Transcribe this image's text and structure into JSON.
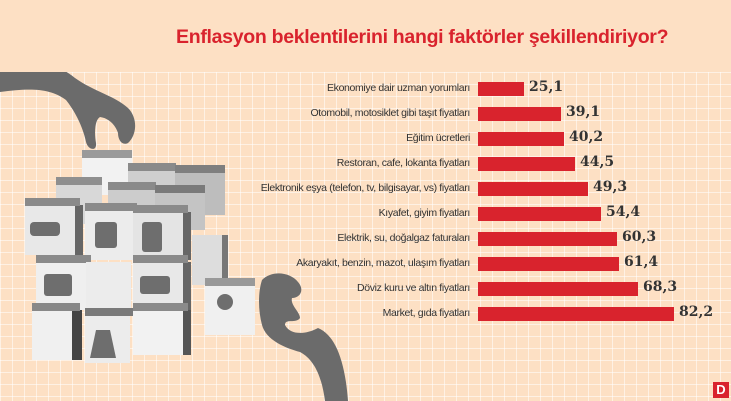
{
  "title": "Enflasyon beklentilerini hangi faktörler şekillendiriyor?",
  "brand_logo": "D",
  "colors": {
    "background": "#fde0c4",
    "bar": "#d9232d",
    "title": "#d9232d",
    "text": "#333333",
    "illustration": "#6e6e6e"
  },
  "illustration": {
    "description": "Two grey hands assembling a Rubik's-cube-like stack of grey cubes with icons",
    "cube_icons": [
      "car-price-tag-icon",
      "shopping-bag-icon",
      "fuel-pump-icon",
      "clothing-tag-icon",
      "graduation-cap-icon",
      "speech-bubble-people-icon",
      "money-bag-dollar-icon"
    ]
  },
  "chart_data": {
    "type": "bar",
    "orientation": "horizontal",
    "title": "Enflasyon beklentilerini hangi faktörler şekillendiriyor?",
    "xlabel": "",
    "ylabel": "",
    "grid": false,
    "legend": null,
    "categories": [
      "Ekonomiye dair uzman yorumları",
      "Otomobil, motosiklet gibi taşıt fiyatları",
      "Eğitim ücretleri",
      "Restoran, cafe, lokanta fiyatları",
      "Elektronik eşya (telefon, tv, bilgisayar, vs) fiyatları",
      "Kıyafet, giyim fiyatları",
      "Elektrik, su, doğalgaz faturaları",
      "Akaryakıt, benzin, mazot, ulaşım fiyatları",
      "Döviz kuru ve altın fiyatları",
      "Market, gıda fiyatları"
    ],
    "values": [
      25.1,
      39.1,
      40.2,
      44.5,
      49.3,
      54.4,
      60.3,
      61.4,
      68.3,
      82.2
    ],
    "value_labels": [
      "25,1",
      "39,1",
      "40,2",
      "44,5",
      "49,3",
      "54,4",
      "60,3",
      "61,4",
      "68,3",
      "82,2"
    ]
  }
}
